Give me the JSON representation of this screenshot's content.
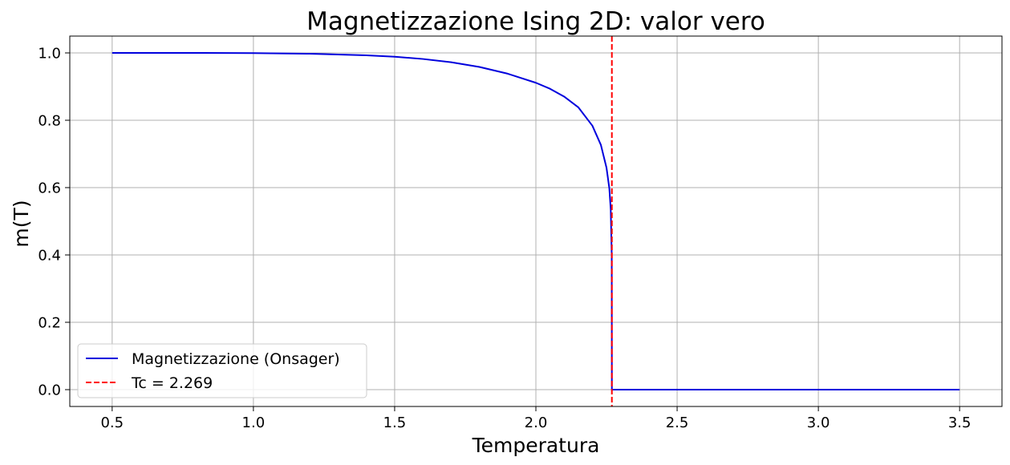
{
  "chart_data": {
    "type": "line",
    "title": "Magnetizzazione Ising 2D: valor vero",
    "xlabel": "Temperatura",
    "ylabel": "m(T)",
    "xlim": [
      0.35,
      3.65
    ],
    "ylim": [
      -0.05,
      1.05
    ],
    "xticks": [
      "0.5",
      "1.0",
      "1.5",
      "2.0",
      "2.5",
      "3.0",
      "3.5"
    ],
    "yticks": [
      "0.0",
      "0.2",
      "0.4",
      "0.6",
      "0.8",
      "1.0"
    ],
    "grid": true,
    "legend_position": "lower-left",
    "series": [
      {
        "name": "Magnetizzazione (Onsager)",
        "color": "#0000dd",
        "style": "solid",
        "x": [
          0.5,
          0.8,
          1.0,
          1.2,
          1.4,
          1.5,
          1.6,
          1.7,
          1.8,
          1.9,
          2.0,
          2.05,
          2.1,
          2.15,
          2.2,
          2.23,
          2.25,
          2.26,
          2.265,
          2.2685,
          2.269,
          2.27,
          2.4,
          2.6,
          2.8,
          3.0,
          3.2,
          3.5
        ],
        "y": [
          1.0,
          1.0,
          0.9995,
          0.9976,
          0.993,
          0.9886,
          0.982,
          0.9723,
          0.9583,
          0.9383,
          0.9113,
          0.8935,
          0.8703,
          0.8386,
          0.7838,
          0.727,
          0.659,
          0.598,
          0.535,
          0.4,
          0.0,
          0.0,
          0.0,
          0.0,
          0.0,
          0.0,
          0.0,
          0.0
        ]
      }
    ],
    "vlines": [
      {
        "name": "Tc = 2.269",
        "x": 2.269,
        "color": "#ff0000",
        "style": "dashed"
      }
    ]
  }
}
